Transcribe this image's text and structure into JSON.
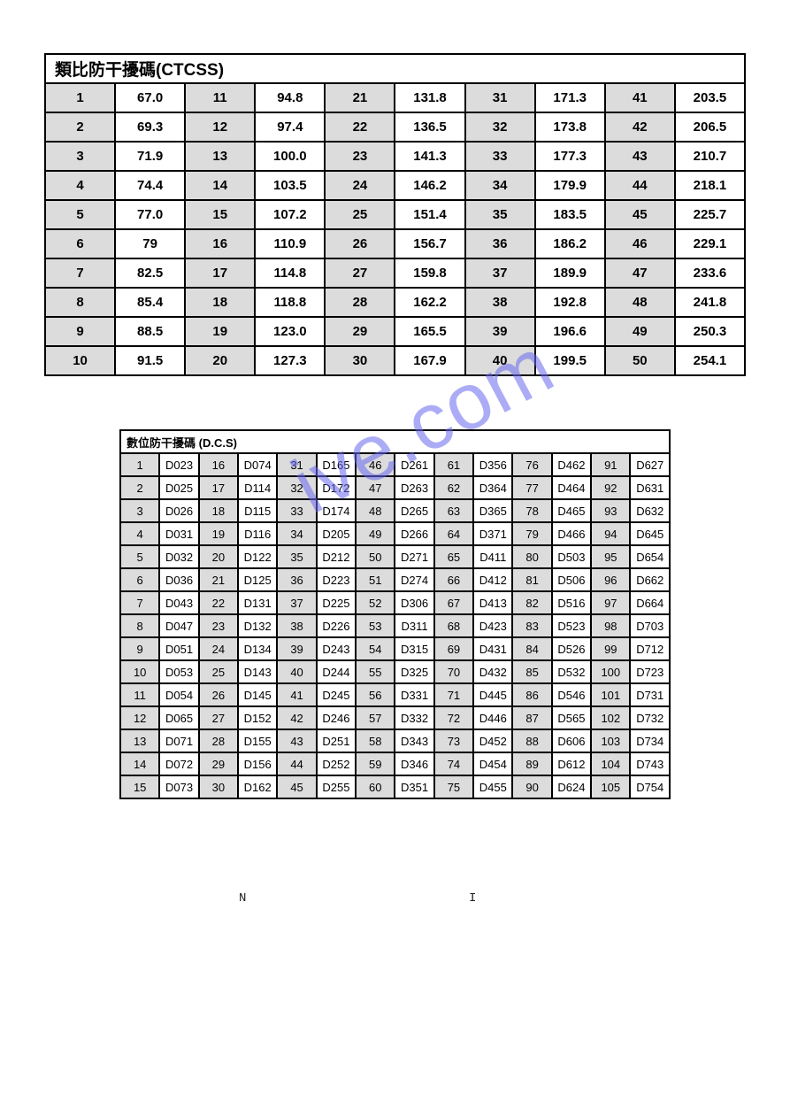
{
  "watermark_text": "ive.com",
  "watermark_color": "#6a6af0",
  "ctcss": {
    "title": "類比防干擾碼(CTCSS)",
    "title_fontsize": 19,
    "border_color": "#000000",
    "idx_bg": "#dcdcdc",
    "val_bg": "#ffffff",
    "cell_fontsize": 15,
    "rows": [
      [
        "1",
        "67.0",
        "11",
        "94.8",
        "21",
        "131.8",
        "31",
        "171.3",
        "41",
        "203.5"
      ],
      [
        "2",
        "69.3",
        "12",
        "97.4",
        "22",
        "136.5",
        "32",
        "173.8",
        "42",
        "206.5"
      ],
      [
        "3",
        "71.9",
        "13",
        "100.0",
        "23",
        "141.3",
        "33",
        "177.3",
        "43",
        "210.7"
      ],
      [
        "4",
        "74.4",
        "14",
        "103.5",
        "24",
        "146.2",
        "34",
        "179.9",
        "44",
        "218.1"
      ],
      [
        "5",
        "77.0",
        "15",
        "107.2",
        "25",
        "151.4",
        "35",
        "183.5",
        "45",
        "225.7"
      ],
      [
        "6",
        "79",
        "16",
        "110.9",
        "26",
        "156.7",
        "36",
        "186.2",
        "46",
        "229.1"
      ],
      [
        "7",
        "82.5",
        "17",
        "114.8",
        "27",
        "159.8",
        "37",
        "189.9",
        "47",
        "233.6"
      ],
      [
        "8",
        "85.4",
        "18",
        "118.8",
        "28",
        "162.2",
        "38",
        "192.8",
        "48",
        "241.8"
      ],
      [
        "9",
        "88.5",
        "19",
        "123.0",
        "29",
        "165.5",
        "39",
        "196.6",
        "49",
        "250.3"
      ],
      [
        "10",
        "91.5",
        "20",
        "127.3",
        "30",
        "167.9",
        "40",
        "199.5",
        "50",
        "254.1"
      ]
    ]
  },
  "dcs": {
    "title": "數位防干擾碼 (D.C.S)",
    "title_fontsize": 15,
    "border_color": "#000000",
    "idx_bg": "#dcdcdc",
    "val_bg": "#ffffff",
    "cell_fontsize": 13,
    "rows": [
      [
        "1",
        "D023",
        "16",
        "D074",
        "31",
        "D165",
        "46",
        "D261",
        "61",
        "D356",
        "76",
        "D462",
        "91",
        "D627"
      ],
      [
        "2",
        "D025",
        "17",
        "D114",
        "32",
        "D172",
        "47",
        "D263",
        "62",
        "D364",
        "77",
        "D464",
        "92",
        "D631"
      ],
      [
        "3",
        "D026",
        "18",
        "D115",
        "33",
        "D174",
        "48",
        "D265",
        "63",
        "D365",
        "78",
        "D465",
        "93",
        "D632"
      ],
      [
        "4",
        "D031",
        "19",
        "D116",
        "34",
        "D205",
        "49",
        "D266",
        "64",
        "D371",
        "79",
        "D466",
        "94",
        "D645"
      ],
      [
        "5",
        "D032",
        "20",
        "D122",
        "35",
        "D212",
        "50",
        "D271",
        "65",
        "D411",
        "80",
        "D503",
        "95",
        "D654"
      ],
      [
        "6",
        "D036",
        "21",
        "D125",
        "36",
        "D223",
        "51",
        "D274",
        "66",
        "D412",
        "81",
        "D506",
        "96",
        "D662"
      ],
      [
        "7",
        "D043",
        "22",
        "D131",
        "37",
        "D225",
        "52",
        "D306",
        "67",
        "D413",
        "82",
        "D516",
        "97",
        "D664"
      ],
      [
        "8",
        "D047",
        "23",
        "D132",
        "38",
        "D226",
        "53",
        "D311",
        "68",
        "D423",
        "83",
        "D523",
        "98",
        "D703"
      ],
      [
        "9",
        "D051",
        "24",
        "D134",
        "39",
        "D243",
        "54",
        "D315",
        "69",
        "D431",
        "84",
        "D526",
        "99",
        "D712"
      ],
      [
        "10",
        "D053",
        "25",
        "D143",
        "40",
        "D244",
        "55",
        "D325",
        "70",
        "D432",
        "85",
        "D532",
        "100",
        "D723"
      ],
      [
        "11",
        "D054",
        "26",
        "D145",
        "41",
        "D245",
        "56",
        "D331",
        "71",
        "D445",
        "86",
        "D546",
        "101",
        "D731"
      ],
      [
        "12",
        "D065",
        "27",
        "D152",
        "42",
        "D246",
        "57",
        "D332",
        "72",
        "D446",
        "87",
        "D565",
        "102",
        "D732"
      ],
      [
        "13",
        "D071",
        "28",
        "D155",
        "43",
        "D251",
        "58",
        "D343",
        "73",
        "D452",
        "88",
        "D606",
        "103",
        "D734"
      ],
      [
        "14",
        "D072",
        "29",
        "D156",
        "44",
        "D252",
        "59",
        "D346",
        "74",
        "D454",
        "89",
        "D612",
        "104",
        "D743"
      ],
      [
        "15",
        "D073",
        "30",
        "D162",
        "45",
        "D255",
        "60",
        "D351",
        "75",
        "D455",
        "90",
        "D624",
        "105",
        "D754"
      ]
    ]
  },
  "footer": {
    "left_char": "N",
    "right_char": "I"
  }
}
